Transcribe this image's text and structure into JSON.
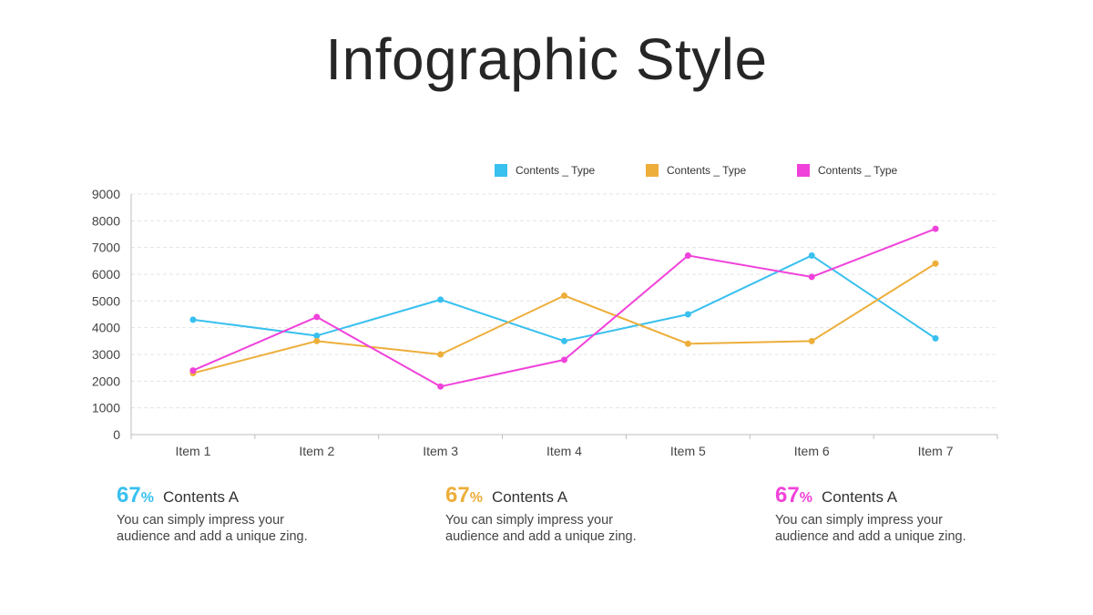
{
  "page": {
    "title": "Infographic Style"
  },
  "chart_data": {
    "type": "line",
    "categories": [
      "Item 1",
      "Item 2",
      "Item 3",
      "Item 4",
      "Item 5",
      "Item 6",
      "Item 7"
    ],
    "series": [
      {
        "name": "Contents _ Type",
        "color": "#38C0EF",
        "values": [
          4300,
          3700,
          5050,
          3500,
          4500,
          6700,
          3600
        ]
      },
      {
        "name": "Contents _ Type",
        "color": "#EDAE3A",
        "values": [
          2300,
          3500,
          3000,
          5200,
          3400,
          3500,
          6400
        ]
      },
      {
        "name": "Contents _ Type",
        "color": "#F042DA",
        "values": [
          2400,
          4400,
          1800,
          2800,
          6700,
          5900,
          7700
        ]
      }
    ],
    "yticks": [
      "0",
      "1000",
      "2000",
      "3000",
      "4000",
      "5000",
      "6000",
      "7000",
      "8000",
      "9000"
    ],
    "ylim": [
      0,
      9000
    ],
    "legend_position": "top-right",
    "grid": true
  },
  "stats": [
    {
      "value": "67",
      "unit": "%",
      "label": "Contents A",
      "text": "You can simply impress your audience and add a unique zing.",
      "color": "#38C0EF"
    },
    {
      "value": "67",
      "unit": "%",
      "label": "Contents A",
      "text": "You can simply impress your audience and add a unique zing.",
      "color": "#EDAE3A"
    },
    {
      "value": "67",
      "unit": "%",
      "label": "Contents A",
      "text": "You can simply impress your audience and add a unique zing.",
      "color": "#F042DA"
    }
  ]
}
